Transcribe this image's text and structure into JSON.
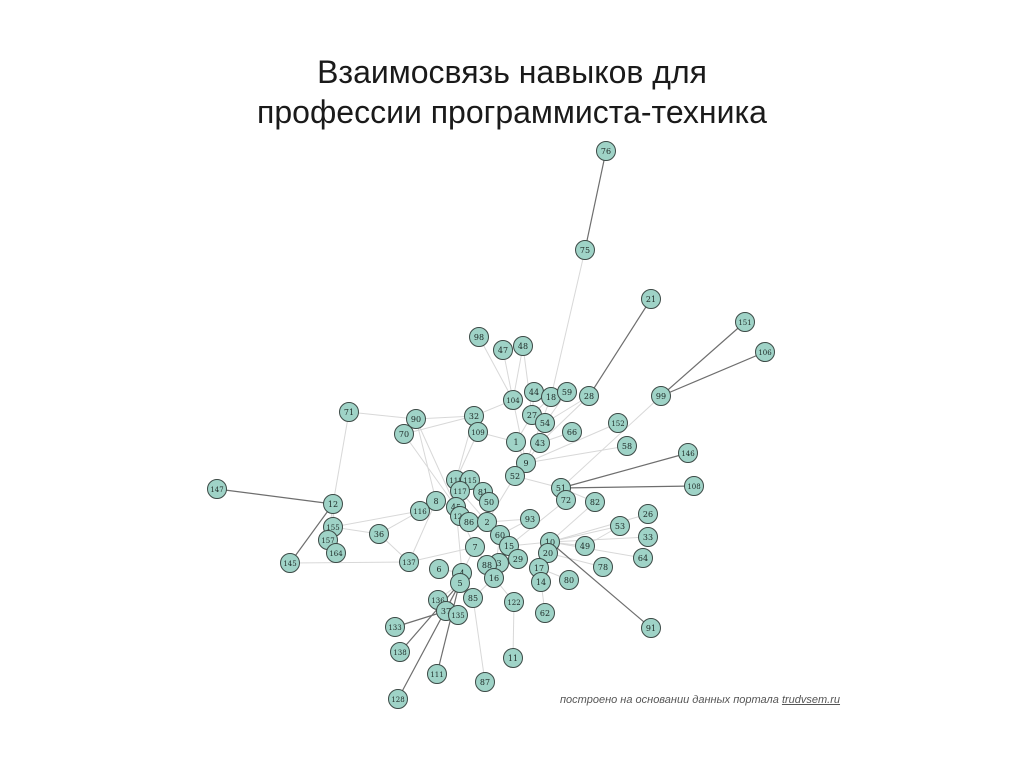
{
  "title": {
    "line1": "Взаимосвязь навыков для",
    "line2": "профессии программиста-техника"
  },
  "footer": {
    "text": "построено на основании данных портала",
    "link": "trudvsem.ru"
  },
  "colors": {
    "node_fill": "#9fd3c7",
    "node_stroke": "#3c4a46",
    "edge_light": "#d8d8d8",
    "edge_dark": "#6e6e6e"
  },
  "nodes": [
    "76",
    "75",
    "21",
    "151",
    "106",
    "98",
    "47",
    "48",
    "44",
    "18",
    "59",
    "28",
    "99",
    "104",
    "27",
    "54",
    "71",
    "90",
    "32",
    "109",
    "70",
    "66",
    "152",
    "1",
    "43",
    "58",
    "9",
    "146",
    "52",
    "147",
    "118",
    "115",
    "117",
    "81",
    "51",
    "108",
    "8",
    "45",
    "50",
    "72",
    "82",
    "116",
    "120",
    "86",
    "2",
    "93",
    "26",
    "12",
    "155",
    "36",
    "60",
    "53",
    "33",
    "157",
    "164",
    "7",
    "10",
    "49",
    "15",
    "20",
    "64",
    "3",
    "29",
    "145",
    "137",
    "6",
    "4",
    "88",
    "17",
    "78",
    "5",
    "16",
    "14",
    "80",
    "136",
    "85",
    "37",
    "135",
    "122",
    "62",
    "91",
    "133",
    "138",
    "11",
    "111",
    "87",
    "128"
  ],
  "edges_dark": [
    [
      "76",
      "75"
    ],
    [
      "28",
      "21"
    ],
    [
      "99",
      "151"
    ],
    [
      "99",
      "106"
    ],
    [
      "51",
      "146"
    ],
    [
      "51",
      "108"
    ],
    [
      "10",
      "91"
    ],
    [
      "147",
      "12"
    ],
    [
      "5",
      "128"
    ],
    [
      "4",
      "111"
    ],
    [
      "5",
      "138"
    ],
    [
      "37",
      "133"
    ],
    [
      "12",
      "145"
    ]
  ],
  "edges_light": [
    [
      "75",
      "18"
    ],
    [
      "98",
      "104"
    ],
    [
      "47",
      "104"
    ],
    [
      "48",
      "104"
    ],
    [
      "48",
      "27"
    ],
    [
      "44",
      "27"
    ],
    [
      "18",
      "27"
    ],
    [
      "59",
      "54"
    ],
    [
      "28",
      "54"
    ],
    [
      "28",
      "43"
    ],
    [
      "71",
      "90"
    ],
    [
      "71",
      "12"
    ],
    [
      "12",
      "155"
    ],
    [
      "12",
      "157"
    ],
    [
      "12",
      "164"
    ],
    [
      "155",
      "36"
    ],
    [
      "157",
      "164"
    ],
    [
      "145",
      "137"
    ],
    [
      "90",
      "32"
    ],
    [
      "70",
      "32"
    ],
    [
      "32",
      "109"
    ],
    [
      "32",
      "104"
    ],
    [
      "109",
      "1"
    ],
    [
      "27",
      "1"
    ],
    [
      "1",
      "9"
    ],
    [
      "66",
      "43"
    ],
    [
      "152",
      "9"
    ],
    [
      "58",
      "9"
    ],
    [
      "9",
      "52"
    ],
    [
      "52",
      "51"
    ],
    [
      "51",
      "72"
    ],
    [
      "51",
      "82"
    ],
    [
      "99",
      "51"
    ],
    [
      "90",
      "8"
    ],
    [
      "8",
      "45"
    ],
    [
      "118",
      "117"
    ],
    [
      "115",
      "81"
    ],
    [
      "117",
      "120"
    ],
    [
      "81",
      "50"
    ],
    [
      "45",
      "120"
    ],
    [
      "120",
      "86"
    ],
    [
      "86",
      "2"
    ],
    [
      "2",
      "60"
    ],
    [
      "60",
      "15"
    ],
    [
      "15",
      "10"
    ],
    [
      "10",
      "20"
    ],
    [
      "10",
      "49"
    ],
    [
      "10",
      "53"
    ],
    [
      "10",
      "26"
    ],
    [
      "10",
      "33"
    ],
    [
      "10",
      "64"
    ],
    [
      "20",
      "78"
    ],
    [
      "20",
      "17"
    ],
    [
      "17",
      "14"
    ],
    [
      "17",
      "80"
    ],
    [
      "7",
      "88"
    ],
    [
      "88",
      "3"
    ],
    [
      "3",
      "29"
    ],
    [
      "3",
      "16"
    ],
    [
      "16",
      "85"
    ],
    [
      "16",
      "122"
    ],
    [
      "14",
      "62"
    ],
    [
      "4",
      "5"
    ],
    [
      "5",
      "136"
    ],
    [
      "5",
      "37"
    ],
    [
      "37",
      "135"
    ],
    [
      "136",
      "135"
    ],
    [
      "6",
      "4"
    ],
    [
      "85",
      "87"
    ],
    [
      "122",
      "11"
    ],
    [
      "116",
      "8"
    ],
    [
      "36",
      "116"
    ],
    [
      "137",
      "7"
    ],
    [
      "93",
      "60"
    ],
    [
      "2",
      "93"
    ],
    [
      "52",
      "2"
    ],
    [
      "43",
      "9"
    ],
    [
      "82",
      "10"
    ],
    [
      "72",
      "15"
    ],
    [
      "53",
      "49"
    ],
    [
      "60",
      "29"
    ],
    [
      "60",
      "16"
    ],
    [
      "88",
      "16"
    ],
    [
      "7",
      "4"
    ],
    [
      "45",
      "4"
    ],
    [
      "36",
      "137"
    ],
    [
      "155",
      "116"
    ],
    [
      "109",
      "118"
    ],
    [
      "104",
      "9"
    ],
    [
      "18",
      "9"
    ],
    [
      "32",
      "118"
    ],
    [
      "8",
      "137"
    ],
    [
      "70",
      "45"
    ],
    [
      "90",
      "120"
    ],
    [
      "45",
      "2"
    ],
    [
      "120",
      "7"
    ],
    [
      "117",
      "2"
    ],
    [
      "118",
      "45"
    ]
  ]
}
